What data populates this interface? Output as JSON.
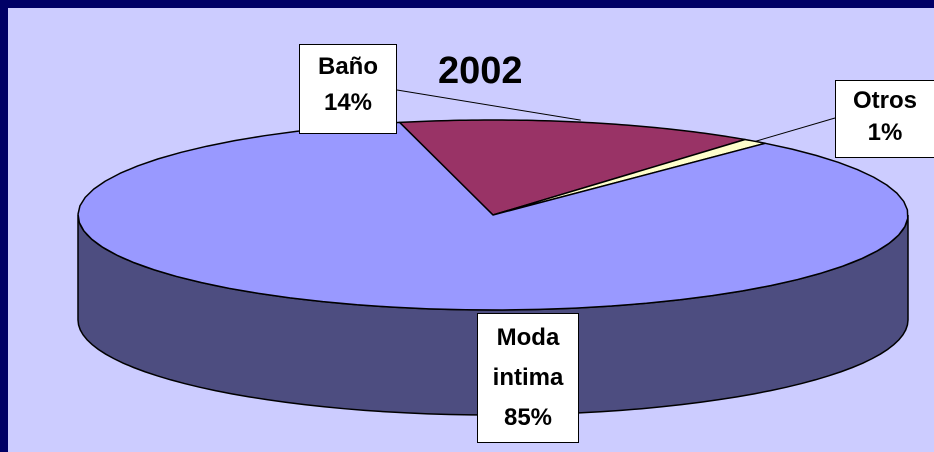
{
  "chart_data": {
    "type": "pie",
    "title": "2002",
    "categories": [
      "Baño",
      "Otros",
      "Moda intima"
    ],
    "values": [
      14,
      1,
      85
    ],
    "value_labels": [
      "14%",
      "1%",
      "85%"
    ],
    "colors": [
      "#993366",
      "#ffffcc",
      "#9999ff"
    ],
    "side_color": "#4d4d80"
  }
}
